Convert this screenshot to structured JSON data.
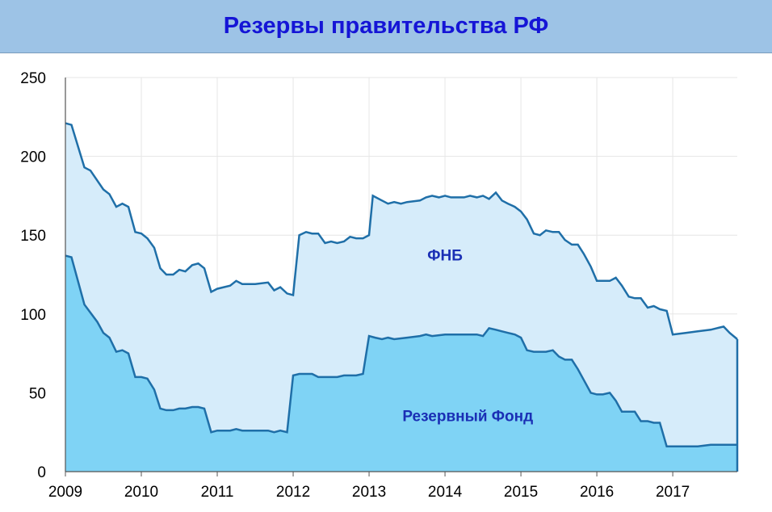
{
  "title": "Резервы правительства РФ",
  "colors": {
    "title_bg": "#9dc3e6",
    "title_text": "#1515d6",
    "fnb_fill": "#d6ecfa",
    "rf_fill": "#7fd3f5",
    "line": "#1f6fa8",
    "label": "#1a2fb5"
  },
  "chart_data": {
    "type": "area",
    "title": "Резервы правительства РФ",
    "xlabel": "",
    "ylabel": "",
    "xlim": [
      2009,
      2017.85
    ],
    "ylim": [
      0,
      250
    ],
    "x_ticks": [
      "2009",
      "2010",
      "2011",
      "2012",
      "2013",
      "2014",
      "2015",
      "2016",
      "2017"
    ],
    "y_ticks": [
      "0",
      "50",
      "100",
      "150",
      "200",
      "250"
    ],
    "grid": true,
    "stacked": true,
    "series": [
      {
        "name": "Резервный Фонд",
        "label_position": [
          2014.3,
          32
        ],
        "points": [
          [
            2009.0,
            137
          ],
          [
            2009.08,
            136
          ],
          [
            2009.25,
            106
          ],
          [
            2009.42,
            95
          ],
          [
            2009.5,
            88
          ],
          [
            2009.58,
            85
          ],
          [
            2009.67,
            76
          ],
          [
            2009.75,
            77
          ],
          [
            2009.83,
            75
          ],
          [
            2009.92,
            60
          ],
          [
            2010.0,
            60
          ],
          [
            2010.08,
            59
          ],
          [
            2010.17,
            52
          ],
          [
            2010.25,
            40
          ],
          [
            2010.33,
            39
          ],
          [
            2010.42,
            39
          ],
          [
            2010.5,
            40
          ],
          [
            2010.58,
            40
          ],
          [
            2010.67,
            41
          ],
          [
            2010.75,
            41
          ],
          [
            2010.83,
            40
          ],
          [
            2010.92,
            25
          ],
          [
            2011.0,
            26
          ],
          [
            2011.08,
            26
          ],
          [
            2011.17,
            26
          ],
          [
            2011.25,
            27
          ],
          [
            2011.33,
            26
          ],
          [
            2011.5,
            26
          ],
          [
            2011.67,
            26
          ],
          [
            2011.75,
            25
          ],
          [
            2011.83,
            26
          ],
          [
            2011.92,
            25
          ],
          [
            2012.0,
            61
          ],
          [
            2012.08,
            62
          ],
          [
            2012.17,
            62
          ],
          [
            2012.25,
            62
          ],
          [
            2012.33,
            60
          ],
          [
            2012.42,
            60
          ],
          [
            2012.5,
            60
          ],
          [
            2012.58,
            60
          ],
          [
            2012.67,
            61
          ],
          [
            2012.75,
            61
          ],
          [
            2012.83,
            61
          ],
          [
            2012.92,
            62
          ],
          [
            2013.0,
            86
          ],
          [
            2013.08,
            85
          ],
          [
            2013.17,
            84
          ],
          [
            2013.25,
            85
          ],
          [
            2013.33,
            84
          ],
          [
            2013.5,
            85
          ],
          [
            2013.67,
            86
          ],
          [
            2013.75,
            87
          ],
          [
            2013.83,
            86
          ],
          [
            2014.0,
            87
          ],
          [
            2014.17,
            87
          ],
          [
            2014.25,
            87
          ],
          [
            2014.33,
            87
          ],
          [
            2014.42,
            87
          ],
          [
            2014.5,
            86
          ],
          [
            2014.58,
            91
          ],
          [
            2014.67,
            90
          ],
          [
            2014.75,
            89
          ],
          [
            2014.83,
            88
          ],
          [
            2014.92,
            87
          ],
          [
            2015.0,
            85
          ],
          [
            2015.08,
            77
          ],
          [
            2015.17,
            76
          ],
          [
            2015.25,
            76
          ],
          [
            2015.33,
            76
          ],
          [
            2015.42,
            77
          ],
          [
            2015.5,
            73
          ],
          [
            2015.58,
            71
          ],
          [
            2015.67,
            71
          ],
          [
            2015.75,
            65
          ],
          [
            2015.83,
            58
          ],
          [
            2015.92,
            50
          ],
          [
            2016.0,
            49
          ],
          [
            2016.08,
            49
          ],
          [
            2016.17,
            50
          ],
          [
            2016.25,
            45
          ],
          [
            2016.33,
            38
          ],
          [
            2016.42,
            38
          ],
          [
            2016.5,
            38
          ],
          [
            2016.58,
            32
          ],
          [
            2016.67,
            32
          ],
          [
            2016.75,
            31
          ],
          [
            2016.83,
            31
          ],
          [
            2016.92,
            16
          ],
          [
            2017.0,
            16
          ],
          [
            2017.17,
            16
          ],
          [
            2017.33,
            16
          ],
          [
            2017.5,
            17
          ],
          [
            2017.58,
            17
          ],
          [
            2017.67,
            17
          ],
          [
            2017.75,
            17
          ],
          [
            2017.85,
            17
          ]
        ]
      },
      {
        "name": "ФНБ",
        "label_position": [
          2014.0,
          134
        ],
        "points": [
          [
            2009.0,
            221
          ],
          [
            2009.08,
            220
          ],
          [
            2009.25,
            193
          ],
          [
            2009.33,
            191
          ],
          [
            2009.5,
            179
          ],
          [
            2009.58,
            176
          ],
          [
            2009.67,
            168
          ],
          [
            2009.75,
            170
          ],
          [
            2009.83,
            168
          ],
          [
            2009.92,
            152
          ],
          [
            2010.0,
            151
          ],
          [
            2010.08,
            148
          ],
          [
            2010.17,
            142
          ],
          [
            2010.25,
            129
          ],
          [
            2010.33,
            125
          ],
          [
            2010.42,
            125
          ],
          [
            2010.5,
            128
          ],
          [
            2010.58,
            127
          ],
          [
            2010.67,
            131
          ],
          [
            2010.75,
            132
          ],
          [
            2010.83,
            129
          ],
          [
            2010.92,
            114
          ],
          [
            2011.0,
            116
          ],
          [
            2011.17,
            118
          ],
          [
            2011.25,
            121
          ],
          [
            2011.33,
            119
          ],
          [
            2011.5,
            119
          ],
          [
            2011.67,
            120
          ],
          [
            2011.75,
            115
          ],
          [
            2011.83,
            117
          ],
          [
            2011.92,
            113
          ],
          [
            2012.0,
            112
          ],
          [
            2012.08,
            150
          ],
          [
            2012.17,
            152
          ],
          [
            2012.25,
            151
          ],
          [
            2012.33,
            151
          ],
          [
            2012.42,
            145
          ],
          [
            2012.5,
            146
          ],
          [
            2012.58,
            145
          ],
          [
            2012.67,
            146
          ],
          [
            2012.75,
            149
          ],
          [
            2012.83,
            148
          ],
          [
            2012.92,
            148
          ],
          [
            2013.0,
            150
          ],
          [
            2013.05,
            175
          ],
          [
            2013.17,
            172
          ],
          [
            2013.25,
            170
          ],
          [
            2013.33,
            171
          ],
          [
            2013.42,
            170
          ],
          [
            2013.5,
            171
          ],
          [
            2013.67,
            172
          ],
          [
            2013.75,
            174
          ],
          [
            2013.83,
            175
          ],
          [
            2013.92,
            174
          ],
          [
            2014.0,
            175
          ],
          [
            2014.08,
            174
          ],
          [
            2014.25,
            174
          ],
          [
            2014.33,
            175
          ],
          [
            2014.42,
            174
          ],
          [
            2014.5,
            175
          ],
          [
            2014.58,
            173
          ],
          [
            2014.67,
            177
          ],
          [
            2014.75,
            172
          ],
          [
            2014.83,
            170
          ],
          [
            2014.92,
            168
          ],
          [
            2015.0,
            165
          ],
          [
            2015.08,
            160
          ],
          [
            2015.17,
            151
          ],
          [
            2015.25,
            150
          ],
          [
            2015.33,
            153
          ],
          [
            2015.42,
            152
          ],
          [
            2015.5,
            152
          ],
          [
            2015.58,
            147
          ],
          [
            2015.67,
            144
          ],
          [
            2015.75,
            144
          ],
          [
            2015.83,
            138
          ],
          [
            2015.92,
            130
          ],
          [
            2016.0,
            121
          ],
          [
            2016.08,
            121
          ],
          [
            2016.17,
            121
          ],
          [
            2016.25,
            123
          ],
          [
            2016.33,
            118
          ],
          [
            2016.42,
            111
          ],
          [
            2016.5,
            110
          ],
          [
            2016.58,
            110
          ],
          [
            2016.67,
            104
          ],
          [
            2016.75,
            105
          ],
          [
            2016.83,
            103
          ],
          [
            2016.92,
            102
          ],
          [
            2017.0,
            87
          ],
          [
            2017.17,
            88
          ],
          [
            2017.33,
            89
          ],
          [
            2017.5,
            90
          ],
          [
            2017.58,
            91
          ],
          [
            2017.67,
            92
          ],
          [
            2017.75,
            88
          ],
          [
            2017.85,
            84
          ]
        ]
      }
    ]
  }
}
